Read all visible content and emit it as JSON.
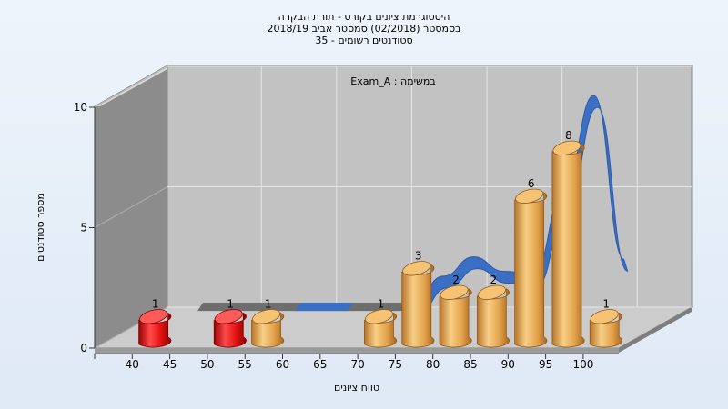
{
  "chart_data": {
    "type": "bar",
    "title": [
      "היסטוגרמת ציונים בקורס - תורת הבקרה",
      "בסמסטר  (02/2018)  סמסטר אביב 2018/19",
      "35 - סטודנטים רשומים"
    ],
    "subtitle": "Exam_A : במשימה",
    "xlabel": "טווח ציונים",
    "ylabel": "מספר סטודנטים",
    "x_ticks": [
      "40",
      "45",
      "50",
      "55",
      "60",
      "65",
      "70",
      "75",
      "80",
      "85",
      "90",
      "95",
      "100"
    ],
    "y_ticks": [
      "0",
      "5",
      "10"
    ],
    "ylim": [
      0,
      10
    ],
    "bins": [
      {
        "x": 42.5,
        "value": 1,
        "label": "1",
        "color": "red"
      },
      {
        "x": 52.5,
        "value": 1,
        "label": "1",
        "color": "red"
      },
      {
        "x": 57.5,
        "value": 1,
        "label": "1",
        "color": "gold"
      },
      {
        "x": 72.5,
        "value": 1,
        "label": "1",
        "color": "gold"
      },
      {
        "x": 77.5,
        "value": 3,
        "label": "3",
        "color": "gold"
      },
      {
        "x": 82.5,
        "value": 2,
        "label": "2",
        "color": "gold"
      },
      {
        "x": 87.5,
        "value": 2,
        "label": "2",
        "color": "gold"
      },
      {
        "x": 92.5,
        "value": 6,
        "label": "6",
        "color": "gold"
      },
      {
        "x": 97.5,
        "value": 8,
        "label": "8",
        "color": "gold"
      },
      {
        "x": 102.5,
        "value": 1,
        "label": "1",
        "color": "gold"
      }
    ],
    "curve": [
      {
        "x": 44,
        "y": 0
      },
      {
        "x": 52,
        "y": 0
      },
      {
        "x": 60,
        "y": 0
      },
      {
        "x": 68,
        "y": 0
      },
      {
        "x": 72,
        "y": 0
      },
      {
        "x": 76,
        "y": 1.1
      },
      {
        "x": 80,
        "y": 1.9
      },
      {
        "x": 84,
        "y": 1.3
      },
      {
        "x": 88,
        "y": 1.2
      },
      {
        "x": 92,
        "y": 4.6
      },
      {
        "x": 96,
        "y": 8.6
      },
      {
        "x": 100,
        "y": 1.8
      }
    ],
    "colors": {
      "red": "#e01010",
      "gold": "#e8a850",
      "curve": "#3a6fc4",
      "wall": "#c0c0c0",
      "side_wall": "#8a8a8a",
      "floor": "#c8c8c8"
    }
  }
}
